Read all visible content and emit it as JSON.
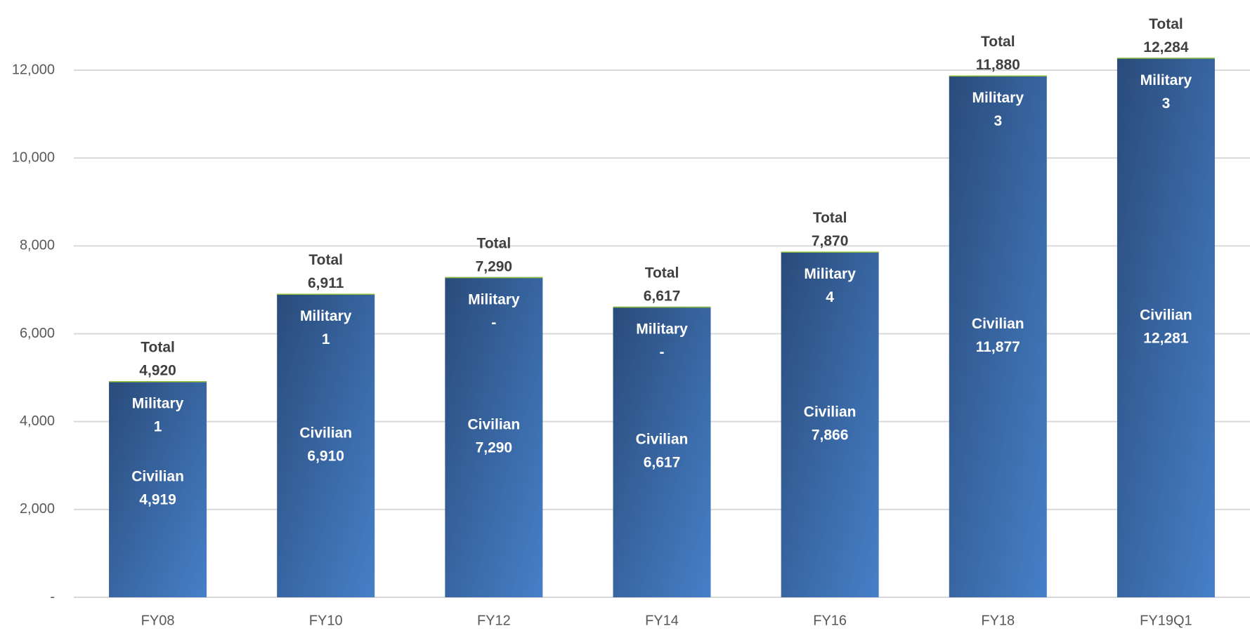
{
  "chart_data": {
    "type": "stacked_bar",
    "categories": [
      "FY08",
      "FY10",
      "FY12",
      "FY14",
      "FY16",
      "FY18",
      "FY19Q1"
    ],
    "series": [
      {
        "name": "Civilian",
        "color": "#3a6aa8",
        "values": [
          4919,
          6910,
          7290,
          6617,
          7866,
          11877,
          12281
        ],
        "value_labels": [
          "4,919",
          "6,910",
          "7,290",
          "6,617",
          "7,866",
          "11,877",
          "12,281"
        ]
      },
      {
        "name": "Military",
        "color": "#8fbf3a",
        "values": [
          1,
          1,
          0,
          0,
          4,
          3,
          3
        ],
        "value_labels": [
          "1",
          "1",
          "-",
          "-",
          "4",
          "3",
          "3"
        ]
      }
    ],
    "totals": {
      "name": "Total",
      "values": [
        4920,
        6911,
        7290,
        6617,
        7870,
        11880,
        12284
      ],
      "value_labels": [
        "4,920",
        "6,911",
        "7,290",
        "6,617",
        "7,870",
        "11,880",
        "12,284"
      ]
    },
    "ylim": [
      0,
      12000
    ],
    "yticks": [
      {
        "value": 0,
        "label": "-"
      },
      {
        "value": 2000,
        "label": "2,000"
      },
      {
        "value": 4000,
        "label": "4,000"
      },
      {
        "value": 6000,
        "label": "6,000"
      },
      {
        "value": 8000,
        "label": "8,000"
      },
      {
        "value": 10000,
        "label": "10,000"
      },
      {
        "value": 12000,
        "label": "12,000"
      }
    ],
    "grid": true
  }
}
